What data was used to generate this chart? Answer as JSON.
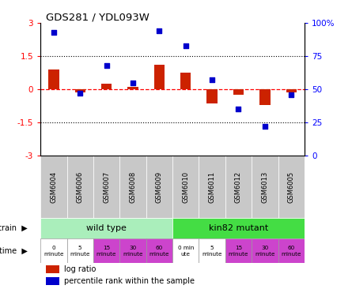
{
  "title": "GDS281 / YDL093W",
  "samples": [
    "GSM6004",
    "GSM6006",
    "GSM6007",
    "GSM6008",
    "GSM6009",
    "GSM6010",
    "GSM6011",
    "GSM6012",
    "GSM6013",
    "GSM6005"
  ],
  "log_ratio": [
    0.9,
    -0.15,
    0.25,
    0.12,
    1.1,
    0.75,
    -0.65,
    -0.25,
    -0.7,
    -0.15
  ],
  "percentile": [
    93,
    47,
    68,
    55,
    94,
    83,
    57,
    35,
    22,
    46
  ],
  "ylim_left": [
    -3,
    3
  ],
  "ylim_right": [
    0,
    100
  ],
  "yticks_left": [
    -3,
    -1.5,
    0,
    1.5,
    3
  ],
  "yticks_right": [
    0,
    25,
    50,
    75,
    100
  ],
  "bar_color": "#CC2200",
  "dot_color": "#0000CC",
  "strain_labels": [
    "wild type",
    "kin82 mutant"
  ],
  "strain_colors": [
    "#AAEEBB",
    "#44DD44"
  ],
  "time_labels": [
    "0\nminute",
    "5\nminute",
    "15\nminute",
    "30\nminute",
    "60\nminute",
    "0 min\nute",
    "5\nminute",
    "15\nminute",
    "30\nminute",
    "60\nminute"
  ],
  "time_colors": [
    "#FFFFFF",
    "#FFFFFF",
    "#CC44CC",
    "#CC44CC",
    "#CC44CC",
    "#FFFFFF",
    "#FFFFFF",
    "#CC44CC",
    "#CC44CC",
    "#CC44CC"
  ],
  "legend_labels": [
    "log ratio",
    "percentile rank within the sample"
  ],
  "bg_color": "#FFFFFF",
  "sample_bg": "#C8C8C8"
}
